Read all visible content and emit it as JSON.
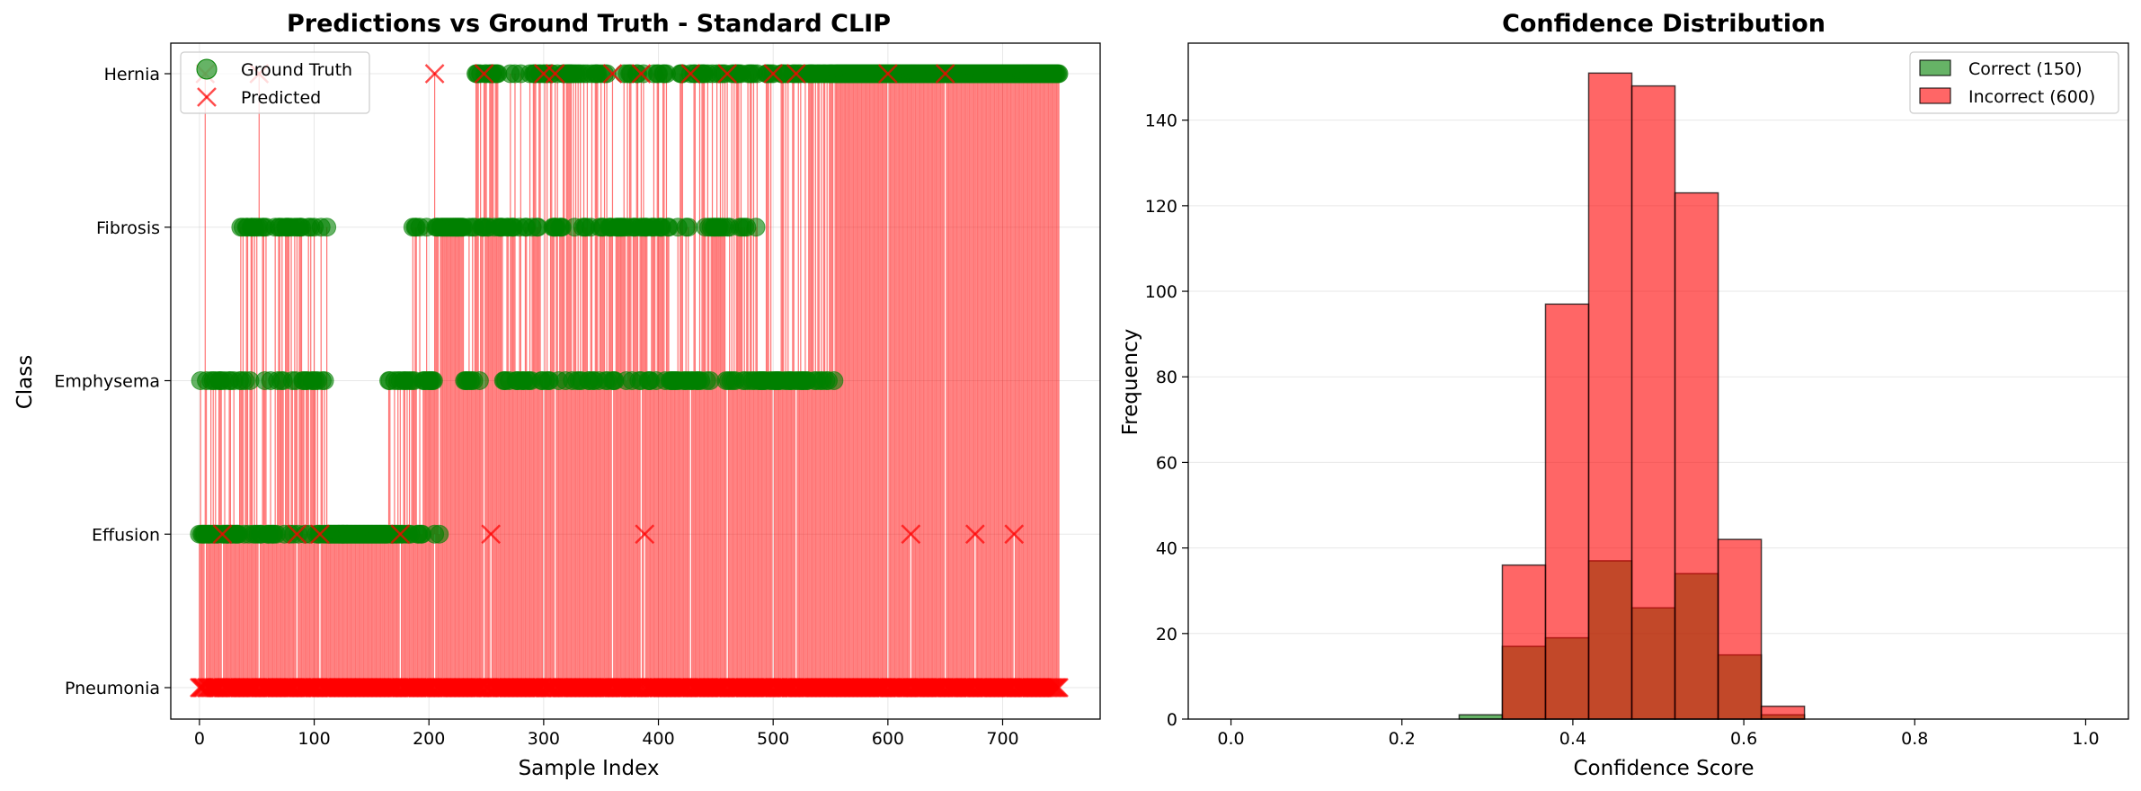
{
  "chart_data": [
    {
      "type": "scatter",
      "title": "Predictions vs Ground Truth - Standard CLIP",
      "xlabel": "Sample Index",
      "ylabel": "Class",
      "xlim": [
        -25,
        785
      ],
      "xticks": [
        0,
        100,
        200,
        300,
        400,
        500,
        600,
        700
      ],
      "ycategories": [
        "Pneumonia",
        "Effusion",
        "Emphysema",
        "Fibrosis",
        "Hernia"
      ],
      "grid": true,
      "legend": "top-left",
      "colors": {
        "ground_truth": "#008000",
        "predicted": "#ff0000",
        "connector": "#ff0000"
      },
      "series": [
        {
          "name": "Ground Truth",
          "marker": "circle",
          "description_runs": [
            {
              "x": [
                0,
                8
              ],
              "class": "Emphysema"
            },
            {
              "x": [
                0,
                210
              ],
              "class": "Effusion"
            },
            {
              "x": [
                10,
                45
              ],
              "class": "Emphysema"
            },
            {
              "x": [
                35,
                115
              ],
              "class": "Fibrosis"
            },
            {
              "x": [
                55,
                110
              ],
              "class": "Emphysema"
            },
            {
              "x": [
                165,
                205
              ],
              "class": "Emphysema"
            },
            {
              "x": [
                185,
                485
              ],
              "class": "Fibrosis"
            },
            {
              "x": [
                230,
                555
              ],
              "class": "Emphysema"
            },
            {
              "x": [
                240,
                750
              ],
              "class": "Hernia"
            }
          ]
        },
        {
          "name": "Predicted",
          "marker": "x",
          "description_runs": [
            {
              "x": [
                0,
                750
              ],
              "class": "Pneumonia"
            }
          ],
          "sparse_points": [
            {
              "x": 5,
              "class": "Hernia"
            },
            {
              "x": 52,
              "class": "Hernia"
            },
            {
              "x": 205,
              "class": "Hernia"
            },
            {
              "x": 248,
              "class": "Hernia"
            },
            {
              "x": 300,
              "class": "Hernia"
            },
            {
              "x": 310,
              "class": "Hernia"
            },
            {
              "x": 360,
              "class": "Hernia"
            },
            {
              "x": 385,
              "class": "Hernia"
            },
            {
              "x": 428,
              "class": "Hernia"
            },
            {
              "x": 460,
              "class": "Hernia"
            },
            {
              "x": 500,
              "class": "Hernia"
            },
            {
              "x": 520,
              "class": "Hernia"
            },
            {
              "x": 600,
              "class": "Hernia"
            },
            {
              "x": 650,
              "class": "Hernia"
            },
            {
              "x": 20,
              "class": "Effusion"
            },
            {
              "x": 85,
              "class": "Effusion"
            },
            {
              "x": 105,
              "class": "Effusion"
            },
            {
              "x": 175,
              "class": "Effusion"
            },
            {
              "x": 254,
              "class": "Effusion"
            },
            {
              "x": 388,
              "class": "Effusion"
            },
            {
              "x": 620,
              "class": "Effusion"
            },
            {
              "x": 676,
              "class": "Effusion"
            },
            {
              "x": 710,
              "class": "Effusion"
            }
          ]
        }
      ]
    },
    {
      "type": "bar",
      "subtype": "overlapping histogram",
      "title": "Confidence Distribution",
      "xlabel": "Confidence Score",
      "ylabel": "Frequency",
      "xlim": [
        -0.05,
        1.05
      ],
      "ylim": [
        0,
        158
      ],
      "xticks": [
        "0.0",
        "0.2",
        "0.4",
        "0.6",
        "0.8",
        "1.0"
      ],
      "yticks": [
        0,
        20,
        40,
        60,
        80,
        100,
        120,
        140
      ],
      "grid": true,
      "legend": "top-right",
      "bin_edges": [
        0.267,
        0.3175,
        0.368,
        0.4185,
        0.469,
        0.5195,
        0.57,
        0.6205,
        0.671
      ],
      "series": [
        {
          "name": "Correct (150)",
          "color": "#008000",
          "values": [
            1,
            17,
            19,
            37,
            26,
            34,
            15,
            1
          ]
        },
        {
          "name": "Incorrect (600)",
          "color": "#ff0000",
          "values": [
            0,
            36,
            97,
            151,
            148,
            123,
            42,
            3
          ]
        }
      ]
    }
  ]
}
